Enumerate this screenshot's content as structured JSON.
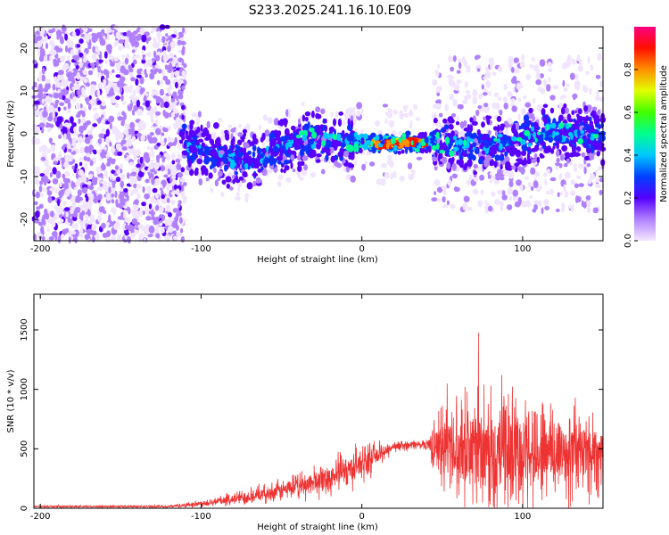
{
  "title": "S233.2025.241.16.10.E09",
  "chart_data": [
    {
      "type": "heatmap",
      "xlabel": "Height of straight line (km)",
      "ylabel": "Frequency (Hz)",
      "xlim": [
        -204,
        150
      ],
      "ylim": [
        -25,
        25
      ],
      "xticks": [
        -200,
        -100,
        0,
        100
      ],
      "yticks": [
        -20,
        -10,
        0,
        10,
        20
      ],
      "colorbar": {
        "label": "Normalized spectral amplitude",
        "range": [
          0,
          1
        ],
        "ticks": [
          "0.0",
          "0.2",
          "0.4",
          "0.6",
          "0.8"
        ],
        "colormap": [
          "#f4e8ff",
          "#7a00ff",
          "#2200ff",
          "#00c8ff",
          "#00ff60",
          "#ffff00",
          "#ff9000",
          "#ff0000",
          "#ff0080"
        ]
      },
      "ridge": {
        "description_points": [
          [
            -110,
            -3
          ],
          [
            -90,
            -5
          ],
          [
            -70,
            -7
          ],
          [
            -50,
            -3
          ],
          [
            -30,
            -1
          ],
          [
            -10,
            -2
          ],
          [
            0,
            -2
          ],
          [
            10,
            -2.5
          ],
          [
            30,
            -2
          ],
          [
            45,
            -2
          ],
          [
            60,
            -3
          ],
          [
            80,
            -3
          ],
          [
            100,
            -1
          ],
          [
            120,
            0
          ],
          [
            150,
            0
          ]
        ]
      },
      "grid": false
    },
    {
      "type": "line",
      "xlabel": "Height of straight line (km)",
      "ylabel": "SNR (10 * v/v)",
      "xlim": [
        -204,
        150
      ],
      "ylim": [
        0,
        1800
      ],
      "xticks": [
        -200,
        -100,
        0,
        100
      ],
      "yticks": [
        0,
        500,
        1000,
        1500
      ],
      "color": "#ee3333",
      "envelope": [
        {
          "x": -204,
          "base": 15,
          "amp": 10
        },
        {
          "x": -120,
          "base": 15,
          "amp": 15
        },
        {
          "x": -100,
          "base": 40,
          "amp": 40
        },
        {
          "x": -80,
          "base": 80,
          "amp": 80
        },
        {
          "x": -60,
          "base": 120,
          "amp": 100
        },
        {
          "x": -40,
          "base": 180,
          "amp": 150
        },
        {
          "x": -20,
          "base": 260,
          "amp": 200
        },
        {
          "x": 0,
          "base": 380,
          "amp": 220
        },
        {
          "x": 20,
          "base": 520,
          "amp": 60
        },
        {
          "x": 40,
          "base": 540,
          "amp": 60
        },
        {
          "x": 50,
          "base": 520,
          "amp": 500
        },
        {
          "x": 70,
          "base": 500,
          "amp": 650
        },
        {
          "x": 100,
          "base": 500,
          "amp": 700
        },
        {
          "x": 120,
          "base": 480,
          "amp": 650
        },
        {
          "x": 150,
          "base": 470,
          "amp": 500
        }
      ],
      "grid": false
    }
  ]
}
